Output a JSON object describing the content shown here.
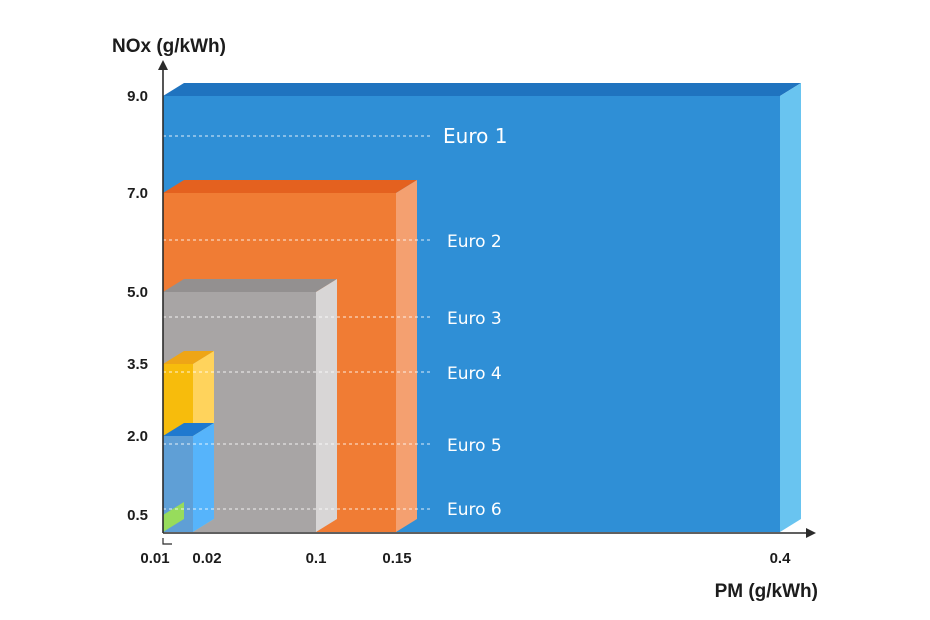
{
  "colors": {
    "axis": "#2b2b2b",
    "text": "#1c1c1c",
    "label": "#ffffff",
    "guide": "#ffffff"
  },
  "chart_data": {
    "type": "area",
    "title": "",
    "xlabel": "PM (g/kWh)",
    "ylabel": "NOx (g/kWh)",
    "x_ticks": [
      "0.01",
      "0.02",
      "0.1",
      "0.15",
      "0.4"
    ],
    "y_ticks": [
      "0.5",
      "2.0",
      "3.5",
      "5.0",
      "7.0",
      "9.0"
    ],
    "scale": "ordinal tick positions (non-linear)",
    "series": [
      {
        "name": "Euro 1",
        "pm": 0.4,
        "nox": 9.0,
        "front": "#2f8fd6",
        "top": "#1f73bf",
        "side": "#69c4f0"
      },
      {
        "name": "Euro 2",
        "pm": 0.15,
        "nox": 7.0,
        "front": "#f07c34",
        "top": "#e4611f",
        "side": "#f4a070"
      },
      {
        "name": "Euro 3",
        "pm": 0.1,
        "nox": 5.0,
        "front": "#a8a5a5",
        "top": "#939090",
        "side": "#d8d6d6"
      },
      {
        "name": "Euro 4",
        "pm": 0.02,
        "nox": 3.5,
        "front": "#f7bc0c",
        "top": "#eea516",
        "side": "#ffd35c"
      },
      {
        "name": "Euro 5",
        "pm": 0.02,
        "nox": 2.0,
        "front": "#5f9fd6",
        "top": "#1f79cf",
        "side": "#56b4fb"
      },
      {
        "name": "Euro 6",
        "pm": 0.01,
        "nox": 0.5,
        "front": "#45b22e",
        "top": "#3a9a25",
        "side": "#97dc5c"
      }
    ]
  }
}
